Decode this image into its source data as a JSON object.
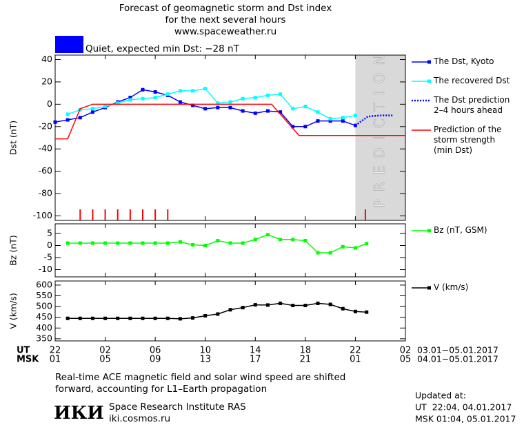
{
  "header": {
    "title": [
      "Forecast of geomagnetic storm and Dst index",
      "for the next several hours",
      "www.spaceweather.ru"
    ],
    "status": {
      "color": "#0000ff",
      "label": "Quiet, expected min Dst: −28 nT"
    }
  },
  "chart_data": [
    {
      "type": "line",
      "ylabel": "Dst (nT)",
      "xlim": [
        0,
        28
      ],
      "ylim": [
        -104,
        44
      ],
      "yticks": [
        -100,
        -80,
        -60,
        -40,
        -20,
        0,
        20,
        40
      ],
      "series": [
        {
          "name": "The Dst, Kyoto",
          "color": "#0000ff",
          "style": "solid",
          "marker": true,
          "x": [
            0,
            1,
            2,
            3,
            4,
            5,
            6,
            7,
            8,
            9,
            10,
            11,
            12,
            13,
            14,
            15,
            16,
            17,
            18,
            19,
            20,
            21,
            22,
            23,
            24
          ],
          "values": [
            -16,
            -14,
            -12,
            -7,
            -3,
            2,
            6,
            13,
            11,
            8,
            2,
            -1,
            -4,
            -3,
            -3,
            -6,
            -8,
            -6,
            -7,
            -20,
            -20,
            -15,
            -15,
            -15,
            -19
          ]
        },
        {
          "name": "The recovered Dst",
          "color": "#00ffff",
          "style": "solid",
          "marker": true,
          "x": [
            1,
            2,
            3,
            4,
            5,
            6,
            7,
            8,
            9,
            10,
            11,
            12,
            13,
            14,
            15,
            16,
            17,
            18,
            19,
            20,
            21,
            22,
            23,
            24
          ],
          "values": [
            -9,
            -5,
            -4,
            -2,
            1,
            4,
            5,
            6,
            9,
            12,
            12,
            14,
            1,
            2,
            5,
            6,
            8,
            9,
            -4,
            -2,
            -7,
            -13,
            -12,
            -10
          ]
        },
        {
          "name": "The Dst prediction\n2–4 hours ahead",
          "color": "#0000ff",
          "style": "dotted",
          "marker": false,
          "x": [
            24,
            25,
            26,
            27
          ],
          "values": [
            -19,
            -11,
            -10,
            -10
          ]
        },
        {
          "name": "Prediction of the\nstorm strength\n(min Dst)",
          "color": "#ff0000",
          "style": "solid",
          "marker": false,
          "x": [
            0,
            1,
            2,
            3,
            17.3,
            19.5,
            28
          ],
          "values": [
            -31,
            -31,
            -4,
            0,
            0,
            -28,
            -28
          ]
        }
      ],
      "prediction_zone": {
        "x": [
          24,
          28
        ],
        "label": "PREDICTION",
        "color": "#d9d9d9"
      },
      "storm_markers": {
        "color": "#ff0000",
        "x": [
          2,
          3,
          4,
          5,
          6,
          7,
          8,
          9,
          24.8
        ]
      }
    },
    {
      "type": "line",
      "ylabel": "Bz (nT)",
      "xlim": [
        0,
        28
      ],
      "ylim": [
        -13,
        9
      ],
      "yticks": [
        -10,
        -5,
        0,
        5
      ],
      "series": [
        {
          "name": "Bz (nT, GSM)",
          "color": "#00ff00",
          "style": "solid",
          "marker": true,
          "x": [
            1,
            2,
            3,
            4,
            5,
            6,
            7,
            8,
            9,
            10,
            11,
            12,
            13,
            14,
            15,
            16,
            17,
            18,
            19,
            20,
            21,
            22,
            23,
            24,
            24.9
          ],
          "values": [
            1,
            1,
            1,
            1,
            1,
            1,
            1,
            1,
            1,
            1.5,
            0.3,
            0,
            2,
            1,
            1,
            2.5,
            4.5,
            2.5,
            2.5,
            2,
            -3,
            -3,
            -0.5,
            -1,
            0.8
          ]
        }
      ]
    },
    {
      "type": "line",
      "ylabel": "V (km/s)",
      "xlim": [
        0,
        28
      ],
      "ylim": [
        340,
        619
      ],
      "yticks": [
        350,
        400,
        450,
        500,
        550,
        600
      ],
      "series": [
        {
          "name": "V (km/s)",
          "color": "#000000",
          "style": "solid",
          "marker": true,
          "x": [
            1,
            2,
            3,
            4,
            5,
            6,
            7,
            8,
            9,
            10,
            11,
            12,
            13,
            14,
            15,
            16,
            17,
            18,
            19,
            20,
            21,
            22,
            23,
            24,
            24.9
          ],
          "values": [
            445,
            445,
            445,
            445,
            445,
            445,
            445,
            445,
            445,
            443,
            447,
            457,
            465,
            485,
            495,
            508,
            507,
            515,
            505,
            505,
            515,
            510,
            490,
            477,
            474
          ]
        }
      ],
      "xticks": [
        {
          "value": 0,
          "label": "22"
        },
        {
          "value": 4,
          "label": "02"
        },
        {
          "value": 8,
          "label": "06"
        },
        {
          "value": 12,
          "label": "10"
        },
        {
          "value": 16,
          "label": "14"
        },
        {
          "value": 20,
          "label": "18"
        },
        {
          "value": 24,
          "label": "22"
        },
        {
          "value": 28,
          "label": "02"
        }
      ],
      "xticks_msk": [
        {
          "value": 0,
          "label": "01"
        },
        {
          "value": 4,
          "label": "05"
        },
        {
          "value": 8,
          "label": "09"
        },
        {
          "value": 12,
          "label": "13"
        },
        {
          "value": 16,
          "label": "17"
        },
        {
          "value": 20,
          "label": "21"
        },
        {
          "value": 24,
          "label": "01"
        },
        {
          "value": 28,
          "label": "05"
        }
      ],
      "xaxis_rows": {
        "ut": "UT",
        "msk": "MSK",
        "ut_range": "03.01−05.01.2017",
        "msk_range": "04.01−05.01.2017"
      }
    }
  ],
  "footer": {
    "note": [
      "Real-time ACE magnetic field and solar wind speed are shifted",
      "forward, accounting for L1–Earth propagation"
    ],
    "logo": "ИКИ",
    "institute": "Space Research Institute RAS",
    "site": "iki.cosmos.ru",
    "updated": [
      "Updated at:",
      "UT  22:04, 04.01.2017",
      "MSK 01:04, 05.01.2017"
    ]
  }
}
